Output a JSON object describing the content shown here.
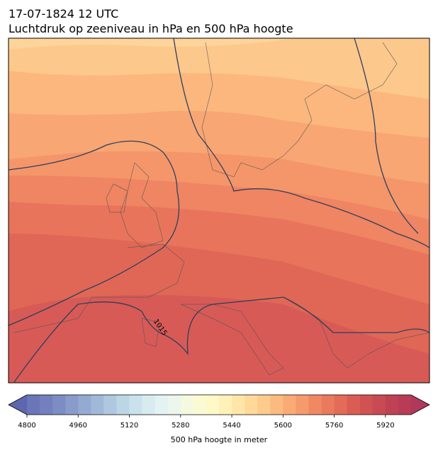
{
  "header": {
    "title_line1": "17-07-1824 12 UTC",
    "title_line2": "Luchtdruk op zeeniveau in hPa en 500 hPa hoogte"
  },
  "map": {
    "contour_label": "1015"
  },
  "colorbar": {
    "label": "500 hPa hoogte in meter",
    "clim": [
      4800,
      6000
    ],
    "ticks": [
      4800,
      4960,
      5120,
      5280,
      5440,
      5600,
      5760,
      5920
    ],
    "extend": "both",
    "under_color": "#5d66ae",
    "over_color": "#b0385a",
    "colors": [
      "#6b76b8",
      "#7380bd",
      "#7c8dc4",
      "#889bca",
      "#94aad1",
      "#a1b9d8",
      "#afc8df",
      "#bdd6e6",
      "#cbe2ec",
      "#d8ebf1",
      "#e3f2f3",
      "#ecf6ec",
      "#f4f9e0",
      "#fafbd3",
      "#fff9c8",
      "#fff1b8",
      "#ffe6a8",
      "#fed99a",
      "#fdcb8c",
      "#fbbb80",
      "#f9aa75",
      "#f59a6c",
      "#f08963",
      "#ea7a5d",
      "#e36b57",
      "#da5d54",
      "#d15252",
      "#c84a52",
      "#bf4254",
      "#b83c56"
    ]
  }
}
